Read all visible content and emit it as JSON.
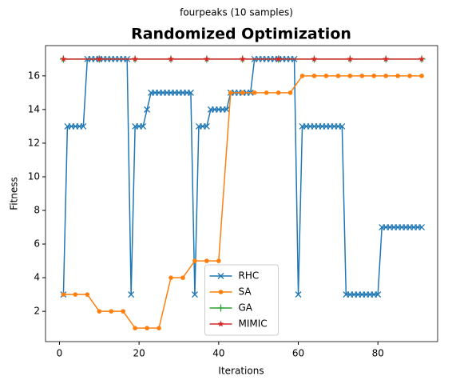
{
  "chart_data": {
    "type": "line",
    "suptitle": "fourpeaks (10 samples)",
    "title": "Randomized Optimization",
    "xlabel": "Iterations",
    "ylabel": "Fitness",
    "xlim": [
      -3.5,
      95
    ],
    "ylim": [
      0.2,
      17.8
    ],
    "xticks": [
      0,
      20,
      40,
      60,
      80
    ],
    "yticks": [
      2,
      4,
      6,
      8,
      10,
      12,
      14,
      16
    ],
    "grid": false,
    "legend": "lower center",
    "series": [
      {
        "name": "RHC",
        "color": "#1f77b4",
        "marker": "x",
        "x": [
          1,
          2,
          3,
          4,
          5,
          6,
          7,
          8,
          9,
          10,
          11,
          12,
          13,
          14,
          15,
          16,
          17,
          18,
          19,
          20,
          21,
          22,
          23,
          24,
          25,
          26,
          27,
          28,
          29,
          30,
          31,
          32,
          33,
          34,
          35,
          36,
          37,
          38,
          39,
          40,
          41,
          42,
          43,
          44,
          45,
          46,
          47,
          48,
          49,
          50,
          51,
          52,
          53,
          54,
          55,
          56,
          57,
          58,
          59,
          60,
          61,
          62,
          63,
          64,
          65,
          66,
          67,
          68,
          69,
          70,
          71,
          72,
          73,
          74,
          75,
          76,
          77,
          78,
          79,
          80,
          81,
          82,
          83,
          84,
          85,
          86,
          87,
          88,
          89,
          90,
          91
        ],
        "values": [
          3,
          13,
          13,
          13,
          13,
          13,
          17,
          17,
          17,
          17,
          17,
          17,
          17,
          17,
          17,
          17,
          17,
          3,
          13,
          13,
          13,
          14,
          15,
          15,
          15,
          15,
          15,
          15,
          15,
          15,
          15,
          15,
          15,
          3,
          13,
          13,
          13,
          14,
          14,
          14,
          14,
          14,
          15,
          15,
          15,
          15,
          15,
          15,
          17,
          17,
          17,
          17,
          17,
          17,
          17,
          17,
          17,
          17,
          17,
          3,
          13,
          13,
          13,
          13,
          13,
          13,
          13,
          13,
          13,
          13,
          13,
          3,
          3,
          3,
          3,
          3,
          3,
          3,
          3,
          3,
          7,
          7,
          7,
          7,
          7,
          7,
          7,
          7,
          7,
          7,
          7
        ]
      },
      {
        "name": "SA",
        "color": "#ff7f0e",
        "marker": "o",
        "x": [
          1,
          4,
          7,
          10,
          13,
          16,
          19,
          22,
          25,
          28,
          31,
          34,
          37,
          40,
          43,
          46,
          49,
          52,
          55,
          58,
          61,
          64,
          67,
          70,
          73,
          76,
          79,
          82,
          85,
          88,
          91
        ],
        "values": [
          3,
          3,
          3,
          2,
          2,
          2,
          1,
          1,
          1,
          4,
          4,
          5,
          5,
          5,
          15,
          15,
          15,
          15,
          15,
          15,
          16,
          16,
          16,
          16,
          16,
          16,
          16,
          16,
          16,
          16,
          16
        ]
      },
      {
        "name": "GA",
        "color": "#2ca02c",
        "marker": "+",
        "x": [
          1,
          10,
          19,
          28,
          37,
          46,
          55,
          64,
          73,
          82,
          91
        ],
        "values": [
          17,
          17,
          17,
          17,
          17,
          17,
          17,
          17,
          17,
          17,
          17
        ]
      },
      {
        "name": "MIMIC",
        "color": "#d62728",
        "marker": "*",
        "x": [
          1,
          10,
          19,
          28,
          37,
          46,
          55,
          64,
          73,
          82,
          91
        ],
        "values": [
          17,
          17,
          17,
          17,
          17,
          17,
          17,
          17,
          17,
          17,
          17
        ]
      }
    ]
  }
}
